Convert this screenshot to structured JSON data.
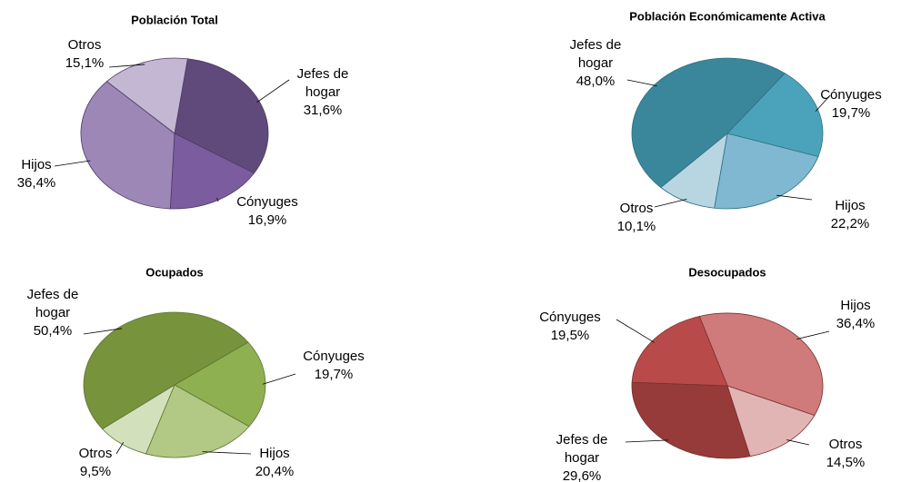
{
  "chart_data": [
    {
      "type": "pie",
      "title": "Población Total",
      "categories": [
        "Jefes de hogar",
        "Cónyuges",
        "Hijos",
        "Otros"
      ],
      "values": [
        31.6,
        16.9,
        36.4,
        15.1
      ],
      "value_labels": [
        "31,6%",
        "16,9%",
        "36,4%",
        "15,1%"
      ],
      "colors": [
        "#604a7b",
        "#7b5c9e",
        "#9d87b7",
        "#c3b7d3"
      ]
    },
    {
      "type": "pie",
      "title": "Población Económicamente Activa",
      "categories": [
        "Cónyuges",
        "Hijos",
        "Otros",
        "Jefes de hogar"
      ],
      "values": [
        19.7,
        22.2,
        10.1,
        48.0
      ],
      "value_labels": [
        "19,7%",
        "22,2%",
        "10,1%",
        "48,0%"
      ],
      "colors": [
        "#4aa3bb",
        "#7fb8d0",
        "#b7d6e2",
        "#3a879c"
      ]
    },
    {
      "type": "pie",
      "title": "Ocupados",
      "categories": [
        "Cónyuges",
        "Hijos",
        "Otros",
        "Jefes de hogar"
      ],
      "values": [
        19.7,
        20.4,
        9.5,
        50.4
      ],
      "value_labels": [
        "19,7%",
        "20,4%",
        "9,5%",
        "50,4%"
      ],
      "colors": [
        "#8fb051",
        "#b1c985",
        "#d3e0bc",
        "#77933c"
      ]
    },
    {
      "type": "pie",
      "title": "Desocupados",
      "categories": [
        "Hijos",
        "Otros",
        "Jefes de hogar",
        "Cónyuges"
      ],
      "values": [
        36.4,
        14.5,
        29.6,
        19.5
      ],
      "value_labels": [
        "36,4%",
        "14,5%",
        "29,6%",
        "19,5%"
      ],
      "colors": [
        "#cf7b7b",
        "#e2b5b5",
        "#963a3a",
        "#b84b4a"
      ]
    }
  ]
}
